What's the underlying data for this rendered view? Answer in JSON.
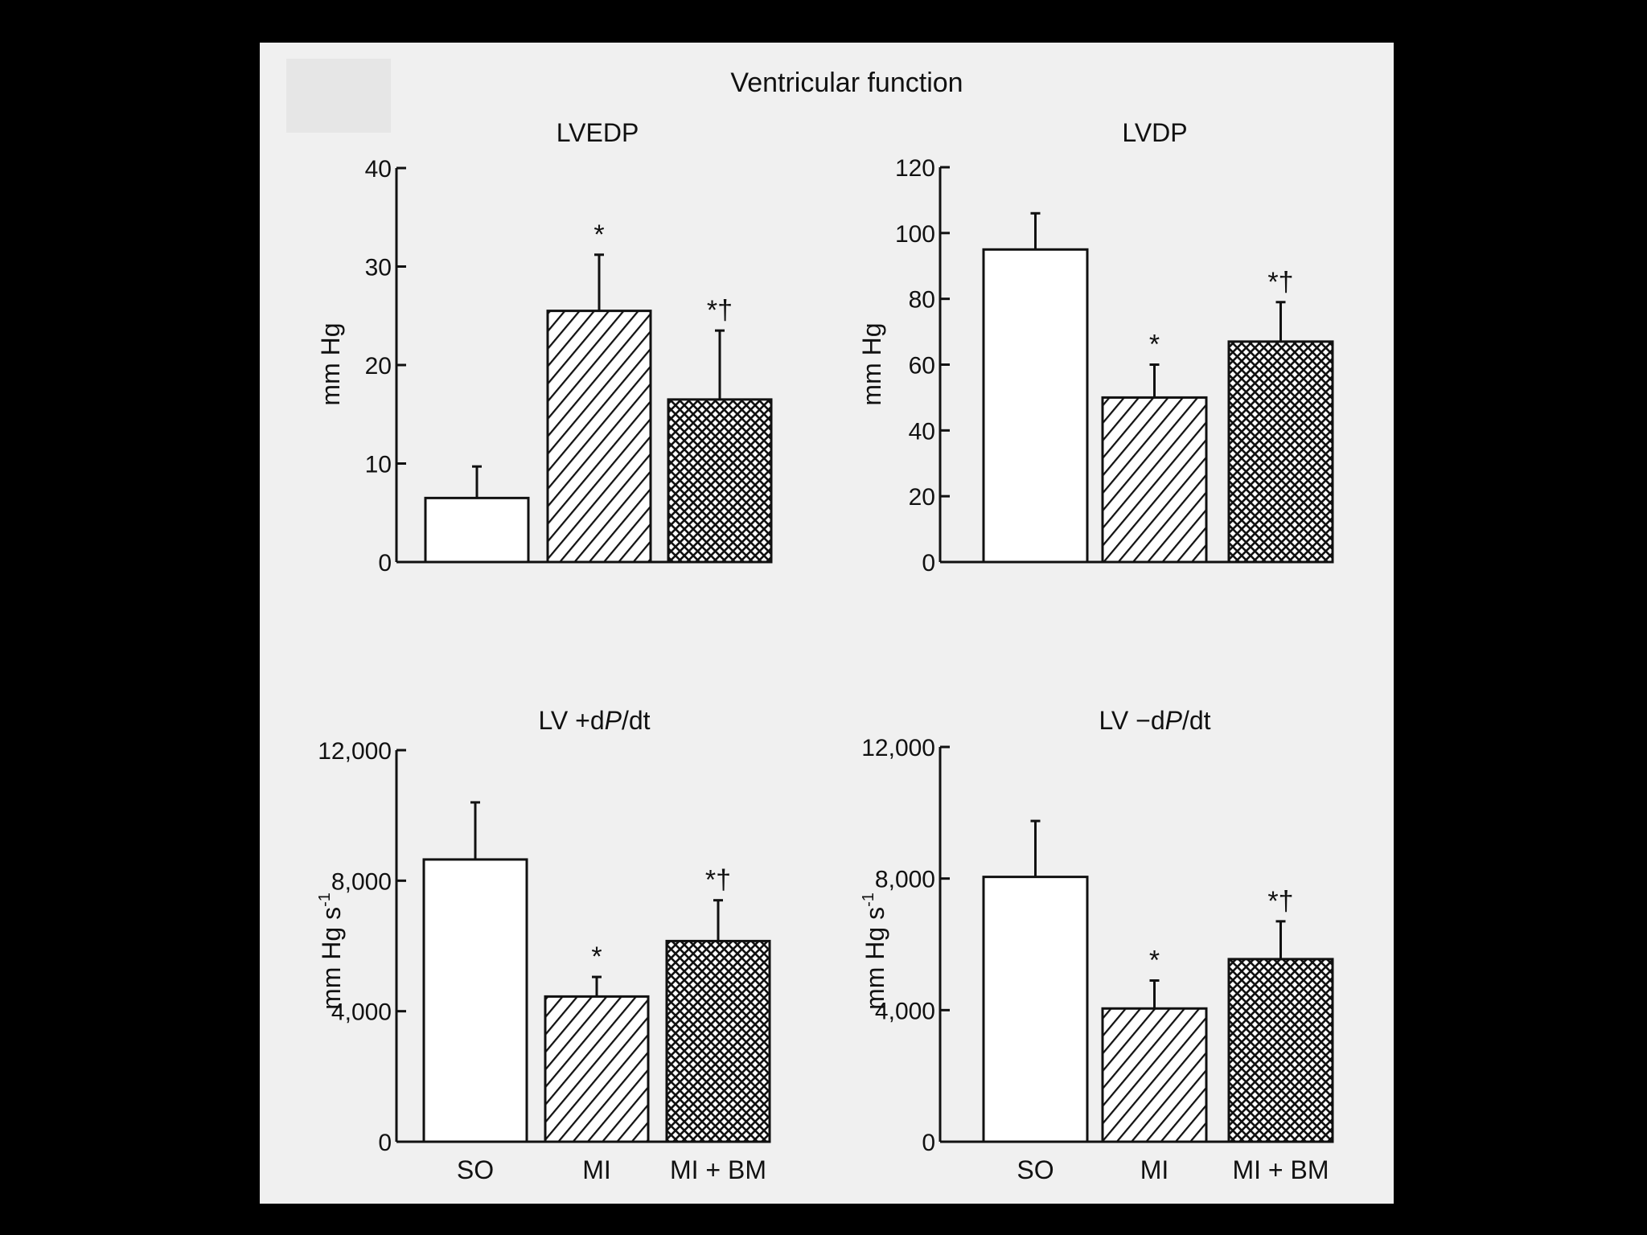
{
  "figure_title": "Ventricular function",
  "chart_data": [
    {
      "type": "bar",
      "title": "LVEDP",
      "ylabel": "mm Hg",
      "ylim": [
        0,
        40
      ],
      "yticks": [
        0,
        10,
        20,
        30,
        40
      ],
      "ytick_labels": [
        "0",
        "10",
        "20",
        "30",
        "40"
      ],
      "categories": [
        "SO",
        "MI",
        "MI + BM"
      ],
      "show_category_labels": false,
      "values": [
        6.5,
        25.5,
        16.5
      ],
      "errors": [
        3.2,
        5.7,
        7.0
      ],
      "annotations": [
        "",
        "*",
        "*†"
      ],
      "patterns": [
        "none",
        "diagonal",
        "crosshatch"
      ]
    },
    {
      "type": "bar",
      "title": "LVDP",
      "ylabel": "mm Hg",
      "ylim": [
        0,
        120
      ],
      "yticks": [
        0,
        20,
        40,
        60,
        80,
        100,
        120
      ],
      "ytick_labels": [
        "0",
        "20",
        "40",
        "60",
        "80",
        "100",
        "120"
      ],
      "categories": [
        "SO",
        "MI",
        "MI + BM"
      ],
      "show_category_labels": false,
      "values": [
        95,
        50,
        67
      ],
      "errors": [
        11,
        10,
        12
      ],
      "annotations": [
        "",
        "*",
        "*†"
      ],
      "patterns": [
        "none",
        "diagonal",
        "crosshatch"
      ]
    },
    {
      "type": "bar",
      "title": "LV +dP/dt",
      "title_parts": [
        {
          "t": "LV +d",
          "i": false
        },
        {
          "t": "P",
          "i": true
        },
        {
          "t": "/dt",
          "i": false
        }
      ],
      "ylabel": "mm Hg s",
      "ylabel_sup": "-1",
      "ylim": [
        0,
        12000
      ],
      "yticks": [
        0,
        4000,
        8000,
        12000
      ],
      "ytick_labels": [
        "0",
        "4,000",
        "8,000",
        "12,000"
      ],
      "categories": [
        "SO",
        "MI",
        "MI + BM"
      ],
      "show_category_labels": true,
      "values": [
        8650,
        4450,
        6150
      ],
      "errors": [
        1750,
        600,
        1250
      ],
      "annotations": [
        "",
        "*",
        "*†"
      ],
      "patterns": [
        "none",
        "diagonal",
        "crosshatch"
      ]
    },
    {
      "type": "bar",
      "title": "LV −dP/dt",
      "title_parts": [
        {
          "t": "LV −d",
          "i": false
        },
        {
          "t": "P",
          "i": true
        },
        {
          "t": "/dt",
          "i": false
        }
      ],
      "ylabel": "mm Hg s",
      "ylabel_sup": "-1",
      "ylim": [
        0,
        12000
      ],
      "yticks": [
        0,
        4000,
        8000,
        12000
      ],
      "ytick_labels": [
        "0",
        "4,000",
        "8,000",
        "12,000"
      ],
      "categories": [
        "SO",
        "MI",
        "MI + BM"
      ],
      "show_category_labels": true,
      "values": [
        8050,
        4050,
        5550
      ],
      "errors": [
        1700,
        850,
        1150
      ],
      "annotations": [
        "",
        "*",
        "*†"
      ],
      "patterns": [
        "none",
        "diagonal",
        "crosshatch"
      ]
    }
  ]
}
